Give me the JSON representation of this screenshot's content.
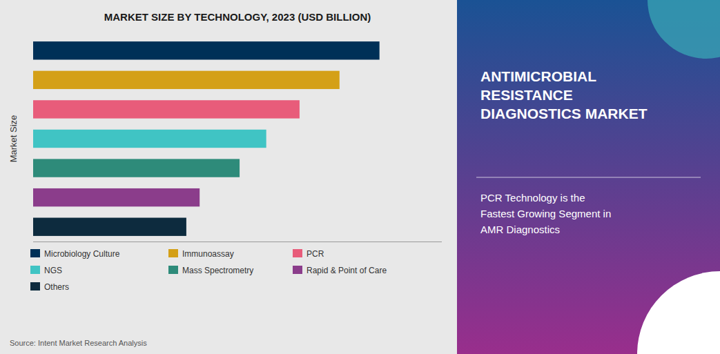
{
  "chart_data": {
    "type": "bar",
    "orientation": "horizontal",
    "title": "MARKET SIZE BY TECHNOLOGY, 2023 (USD BILLION)",
    "ylabel": "Market Size",
    "categories": [
      "Microbiology Culture",
      "Immunoassay",
      "PCR",
      "NGS",
      "Mass Spectrometry",
      "Rapid & Point of Care",
      "Others"
    ],
    "values": [
      5.2,
      4.6,
      4.0,
      3.5,
      3.1,
      2.5,
      2.3
    ],
    "colors": [
      "#003057",
      "#D4A017",
      "#E85C7A",
      "#40C4C4",
      "#2E8B7A",
      "#8B3D8B",
      "#0D2B3E"
    ],
    "xlim": [
      0,
      6.136
    ],
    "tick_labels": false,
    "grid": false,
    "legend": "bottom",
    "data_labels": false,
    "annotations": [
      "ANTIMICROBIAL\nRESISTANCE\nDIAGNOSTICS MARKET",
      "PCR Technology is the\nFastest Growing Segment in\nAMR Diagnostics",
      "Source: Intent Market Research Analysis"
    ]
  }
}
